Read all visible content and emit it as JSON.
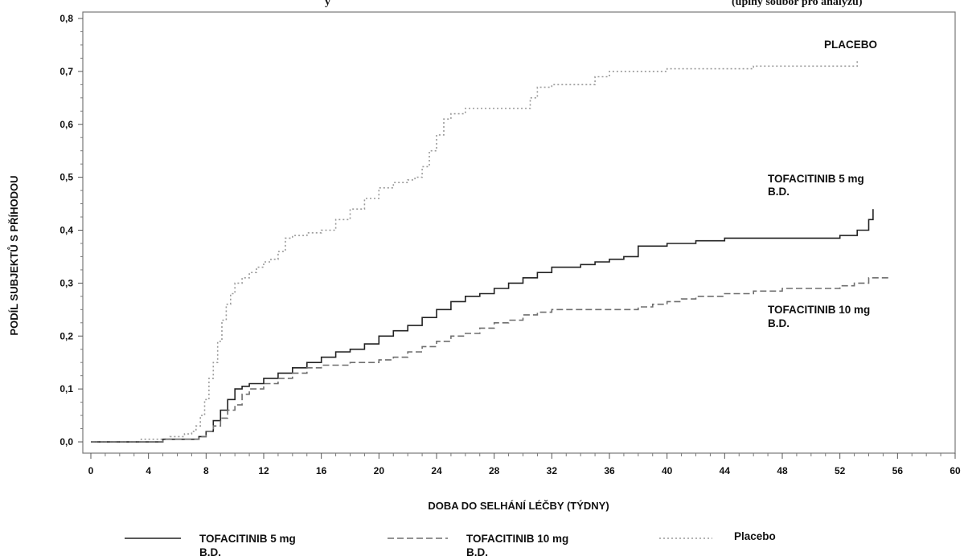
{
  "chart_data": {
    "type": "line",
    "title_fragment_left": "y",
    "title_fragment_right": "(úplný soubor pro analýzu)",
    "xlabel": "DOBA DO SELHÁNÍ LÉČBY (TÝDNY)",
    "ylabel": "PODÍL SUBJEKTŮ S PŘÍHODOU",
    "xlim": [
      0,
      60
    ],
    "ylim": [
      0.0,
      0.8
    ],
    "x_ticks": [
      "0",
      "4",
      "8",
      "12",
      "16",
      "20",
      "24",
      "28",
      "32",
      "36",
      "40",
      "44",
      "48",
      "52",
      "56",
      "60"
    ],
    "y_ticks": [
      "0,0",
      "0,1",
      "0,2",
      "0,3",
      "0,4",
      "0,5",
      "0,6",
      "0,7",
      "0,8"
    ],
    "annotations": {
      "placebo": "PLACEBO",
      "tofa5_line1": "TOFACITINIB 5 mg",
      "tofa5_line2": "B.D.",
      "tofa10_line1": "TOFACITINIB 10 mg",
      "tofa10_line2": "B.D."
    },
    "series": [
      {
        "name": "Placebo",
        "color": "#9a9a9a",
        "style": "dotted",
        "x": [
          0,
          2.5,
          3.5,
          5.5,
          6.5,
          7.0,
          7.3,
          7.6,
          7.9,
          8.2,
          8.5,
          8.8,
          9.1,
          9.4,
          9.7,
          10.0,
          10.5,
          11.0,
          11.5,
          12.0,
          12.5,
          13.0,
          13.5,
          14.0,
          15.0,
          16.0,
          17.0,
          18.0,
          19.0,
          20.0,
          21.0,
          22.0,
          22.5,
          23.0,
          23.5,
          24.0,
          24.5,
          25.0,
          26.0,
          28.0,
          30.0,
          30.5,
          31.0,
          32.0,
          34.0,
          35.0,
          36.0,
          37.0,
          38.0,
          40.0,
          42.0,
          44.0,
          46.0,
          48.0,
          50.0,
          52.0,
          53.2
        ],
        "values": [
          0.0,
          0.0,
          0.005,
          0.01,
          0.015,
          0.02,
          0.03,
          0.05,
          0.08,
          0.12,
          0.15,
          0.19,
          0.23,
          0.26,
          0.28,
          0.3,
          0.31,
          0.32,
          0.33,
          0.34,
          0.345,
          0.36,
          0.385,
          0.39,
          0.395,
          0.4,
          0.42,
          0.44,
          0.46,
          0.48,
          0.49,
          0.495,
          0.5,
          0.52,
          0.55,
          0.58,
          0.61,
          0.62,
          0.63,
          0.63,
          0.63,
          0.65,
          0.67,
          0.675,
          0.675,
          0.69,
          0.7,
          0.7,
          0.7,
          0.705,
          0.705,
          0.705,
          0.71,
          0.71,
          0.71,
          0.71,
          0.72
        ]
      },
      {
        "name": "TOFACITINIB 5 mg B.D.",
        "color": "#222222",
        "style": "solid",
        "x": [
          0,
          3.0,
          5.0,
          7.5,
          8.0,
          8.5,
          9.0,
          9.5,
          10.0,
          10.5,
          11.0,
          12.0,
          13.0,
          14.0,
          15.0,
          16.0,
          17.0,
          18.0,
          19.0,
          20.0,
          21.0,
          22.0,
          23.0,
          24.0,
          25.0,
          26.0,
          27.0,
          28.0,
          29.0,
          30.0,
          31.0,
          32.0,
          34.0,
          35.0,
          36.0,
          37.0,
          38.0,
          40.0,
          42.0,
          44.0,
          46.0,
          48.0,
          50.0,
          52.0,
          53.2,
          54.0,
          54.3
        ],
        "values": [
          0.0,
          0.0,
          0.005,
          0.01,
          0.02,
          0.04,
          0.06,
          0.08,
          0.1,
          0.105,
          0.11,
          0.12,
          0.13,
          0.14,
          0.15,
          0.16,
          0.17,
          0.175,
          0.185,
          0.2,
          0.21,
          0.22,
          0.235,
          0.25,
          0.265,
          0.275,
          0.28,
          0.29,
          0.3,
          0.31,
          0.32,
          0.33,
          0.335,
          0.34,
          0.345,
          0.35,
          0.37,
          0.375,
          0.38,
          0.385,
          0.385,
          0.385,
          0.385,
          0.39,
          0.4,
          0.42,
          0.44
        ]
      },
      {
        "name": "TOFACITINIB 10 mg B.D.",
        "color": "#6e6e6e",
        "style": "dashed",
        "x": [
          0,
          3.0,
          5.0,
          7.5,
          8.0,
          8.5,
          9.0,
          9.5,
          10.0,
          10.5,
          11.0,
          12.0,
          13.0,
          14.0,
          15.0,
          16.0,
          18.0,
          20.0,
          21.0,
          22.0,
          23.0,
          24.0,
          25.0,
          26.0,
          27.0,
          28.0,
          29.0,
          30.0,
          31.0,
          32.0,
          34.0,
          36.0,
          38.0,
          39.0,
          40.0,
          41.0,
          42.0,
          44.0,
          46.0,
          48.0,
          50.0,
          52.0,
          53.0,
          54.0,
          55.5
        ],
        "values": [
          0.0,
          0.0,
          0.005,
          0.01,
          0.02,
          0.03,
          0.045,
          0.06,
          0.07,
          0.09,
          0.1,
          0.11,
          0.12,
          0.13,
          0.14,
          0.145,
          0.15,
          0.155,
          0.16,
          0.17,
          0.18,
          0.19,
          0.2,
          0.205,
          0.215,
          0.225,
          0.23,
          0.24,
          0.245,
          0.25,
          0.25,
          0.25,
          0.255,
          0.26,
          0.265,
          0.27,
          0.275,
          0.28,
          0.285,
          0.29,
          0.29,
          0.295,
          0.3,
          0.31,
          0.31
        ]
      }
    ]
  },
  "legend": {
    "items": [
      {
        "line1": "TOFACITINIB 5 mg",
        "line2": "B.D.",
        "style": "solid"
      },
      {
        "line1": "TOFACITINIB 10 mg",
        "line2": "B.D.",
        "style": "dashed"
      },
      {
        "line1": "Placebo",
        "line2": "",
        "style": "dotted"
      }
    ]
  }
}
